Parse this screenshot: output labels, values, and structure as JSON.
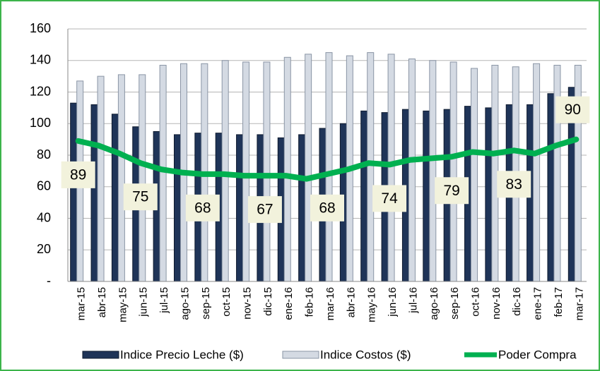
{
  "chart_data": {
    "type": "bar_line",
    "categories": [
      "mar-15",
      "abr-15",
      "may-15",
      "jun-15",
      "jul-15",
      "ago-15",
      "sep-15",
      "oct-15",
      "nov-15",
      "dic-15",
      "ene-16",
      "feb-16",
      "mar-16",
      "abr-16",
      "may-16",
      "jun-16",
      "jul-16",
      "ago-16",
      "sep-16",
      "oct-16",
      "nov-16",
      "dic-16",
      "ene-17",
      "feb-17",
      "mar-17"
    ],
    "series": [
      {
        "name": "Indice Precio Leche ($)",
        "type": "bar",
        "color": "#1f3458",
        "values": [
          113,
          112,
          106,
          98,
          95,
          93,
          94,
          94,
          93,
          93,
          91,
          93,
          97,
          100,
          108,
          107,
          109,
          108,
          109,
          111,
          110,
          112,
          112,
          119,
          123
        ]
      },
      {
        "name": "Indice Costos ($)",
        "type": "bar",
        "color": "#d4dae3",
        "values": [
          127,
          130,
          131,
          131,
          137,
          138,
          138,
          140,
          139,
          139,
          142,
          144,
          145,
          143,
          145,
          144,
          141,
          140,
          139,
          135,
          137,
          136,
          138,
          137,
          137
        ]
      },
      {
        "name": "Poder Compra",
        "type": "line",
        "color": "#00b050",
        "values": [
          89,
          86,
          81,
          75,
          71,
          69,
          68,
          68,
          67,
          67,
          67,
          65,
          68,
          71,
          75,
          74,
          77,
          78,
          79,
          82,
          81,
          83,
          81,
          86,
          90
        ],
        "value_labels": [
          89,
          null,
          null,
          75,
          null,
          null,
          68,
          null,
          null,
          67,
          null,
          null,
          68,
          null,
          null,
          74,
          null,
          null,
          79,
          null,
          null,
          83,
          null,
          null,
          90
        ]
      }
    ],
    "ylim": [
      0,
      160
    ],
    "yticks": [
      {
        "value": 0,
        "label": "-"
      },
      20,
      40,
      60,
      80,
      100,
      120,
      140,
      160
    ],
    "grid": true,
    "legend": "bottom"
  }
}
